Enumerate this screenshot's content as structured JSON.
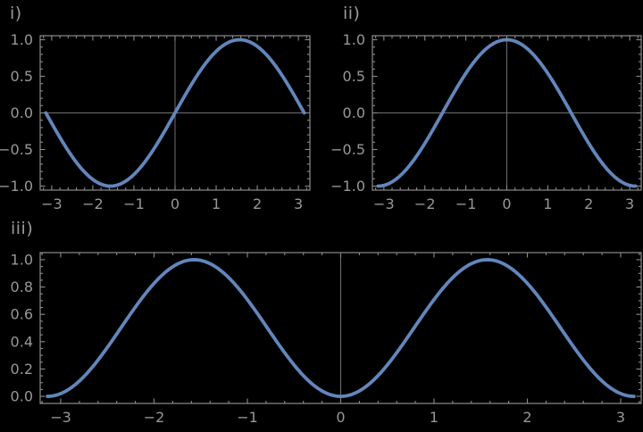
{
  "colors": {
    "background": "#000000",
    "curve": "#6286bc",
    "frame": "#8b8b8b",
    "axis_line": "#707070",
    "tick_label": "#989898",
    "panel_label": "#9a9a9a"
  },
  "chart_data": [
    {
      "id": "i",
      "label": "i)",
      "type": "line",
      "function": "y = sin(x)",
      "fn": "sin",
      "x_range": [
        -3.141592653589793,
        3.141592653589793
      ],
      "xlim": [
        -3.28,
        3.28
      ],
      "ylim": [
        -1.055,
        1.055
      ],
      "x_ticks": [
        -3,
        -2,
        -1,
        0,
        1,
        2,
        3
      ],
      "x_tick_labels": [
        "−3",
        "−2",
        "−1",
        "0",
        "1",
        "2",
        "3"
      ],
      "x_minor_step": 0.2,
      "y_ticks": [
        -1.0,
        -0.5,
        0.0,
        0.5,
        1.0
      ],
      "y_tick_labels": [
        "−1.0",
        "−0.5",
        "0.0",
        "0.5",
        "1.0"
      ],
      "y_minor_step": 0.1,
      "y_values_at_x_ticks": [
        -0.141,
        -0.909,
        -0.841,
        0.0,
        0.841,
        0.909,
        0.141
      ],
      "axis_lines": {
        "vertical_x": 0,
        "horizontal_y": 0
      },
      "grid": false,
      "legend": null
    },
    {
      "id": "ii",
      "label": "ii)",
      "type": "line",
      "function": "y = cos(x)",
      "fn": "cos",
      "x_range": [
        -3.141592653589793,
        3.141592653589793
      ],
      "xlim": [
        -3.28,
        3.28
      ],
      "ylim": [
        -1.055,
        1.055
      ],
      "x_ticks": [
        -3,
        -2,
        -1,
        0,
        1,
        2,
        3
      ],
      "x_tick_labels": [
        "−3",
        "−2",
        "−1",
        "0",
        "1",
        "2",
        "3"
      ],
      "x_minor_step": 0.2,
      "y_ticks": [
        -1.0,
        -0.5,
        0.0,
        0.5,
        1.0
      ],
      "y_tick_labels": [
        "−1.0",
        "−0.5",
        "0.0",
        "0.5",
        "1.0"
      ],
      "y_minor_step": 0.1,
      "y_values_at_x_ticks": [
        -0.99,
        -0.416,
        0.54,
        1.0,
        0.54,
        -0.416,
        -0.99
      ],
      "axis_lines": {
        "vertical_x": 0,
        "horizontal_y": 0
      },
      "grid": false,
      "legend": null
    },
    {
      "id": "iii",
      "label": "iii)",
      "type": "line",
      "function": "y = sin(x)^2",
      "fn": "sin^2",
      "x_range": [
        -3.141592653589793,
        3.141592653589793
      ],
      "xlim": [
        -3.22,
        3.22
      ],
      "ylim": [
        -0.052,
        1.052
      ],
      "x_ticks": [
        -3,
        -2,
        -1,
        0,
        1,
        2,
        3
      ],
      "x_tick_labels": [
        "−3",
        "−2",
        "−1",
        "0",
        "1",
        "2",
        "3"
      ],
      "x_minor_step": 0.2,
      "y_ticks": [
        0.0,
        0.2,
        0.4,
        0.6,
        0.8,
        1.0
      ],
      "y_tick_labels": [
        "0.0",
        "0.2",
        "0.4",
        "0.6",
        "0.8",
        "1.0"
      ],
      "y_minor_step": 0.05,
      "y_values_at_x_ticks": [
        0.02,
        0.827,
        0.708,
        0.0,
        0.708,
        0.827,
        0.02
      ],
      "axis_lines": {
        "vertical_x": 0,
        "horizontal_y": null
      },
      "grid": false,
      "legend": null
    }
  ]
}
